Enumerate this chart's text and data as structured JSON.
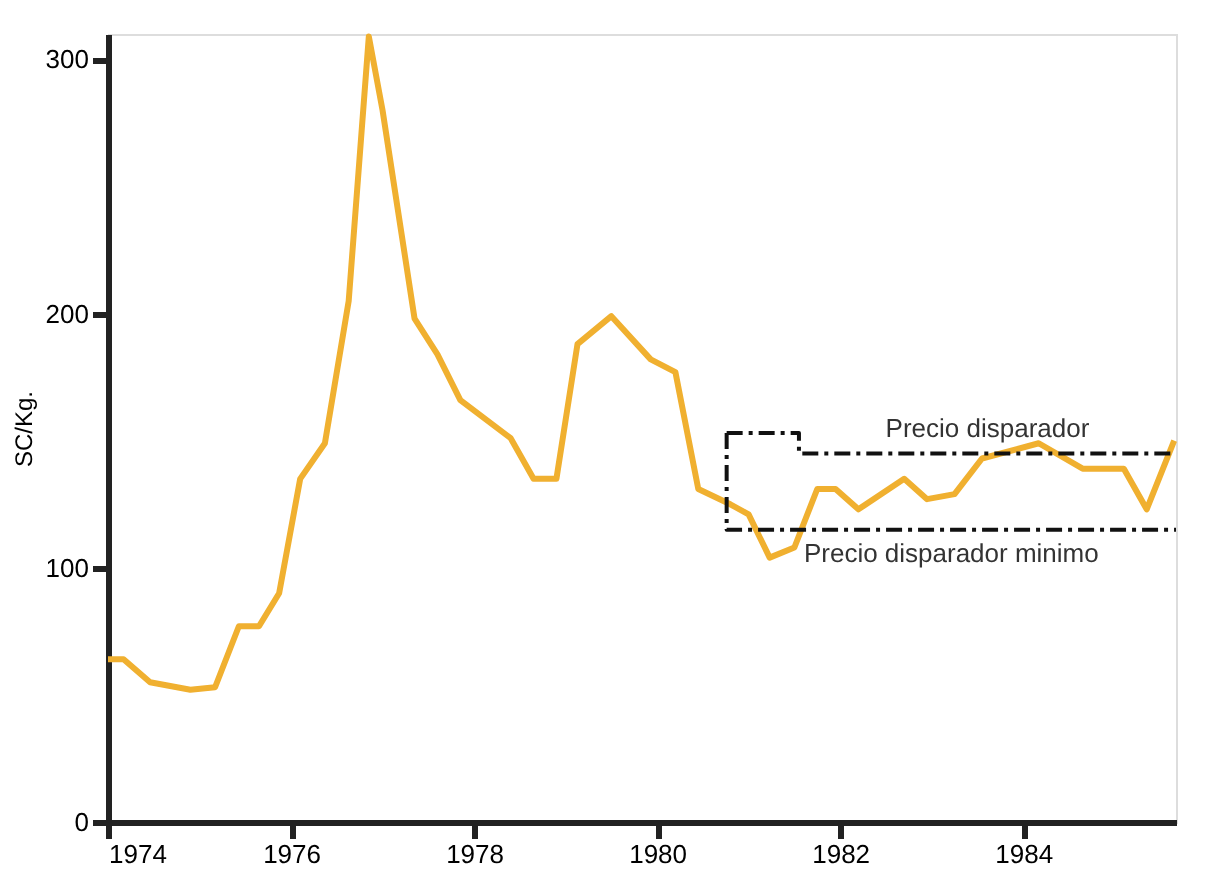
{
  "chart_data": {
    "type": "line",
    "ylabel": "SC/Kg.",
    "xlim": [
      1974,
      1985.67
    ],
    "xticks": [
      1974,
      1976,
      1978,
      1980,
      1982,
      1984
    ],
    "ylim": [
      0,
      310
    ],
    "yticks": [
      0,
      100,
      200,
      300
    ],
    "grid": false,
    "series": [
      {
        "color": "#f0b030",
        "x": [
          1974.0,
          1974.17,
          1974.46,
          1974.9,
          1975.17,
          1975.43,
          1975.65,
          1975.87,
          1976.1,
          1976.37,
          1976.63,
          1976.85,
          1977.0,
          1977.35,
          1977.6,
          1977.85,
          1978.4,
          1978.65,
          1978.9,
          1979.13,
          1979.5,
          1979.93,
          1980.2,
          1980.45,
          1980.8,
          1981.0,
          1981.23,
          1981.5,
          1981.75,
          1981.95,
          1982.2,
          1982.7,
          1982.95,
          1983.25,
          1983.55,
          1984.17,
          1984.65,
          1985.1,
          1985.35,
          1985.65
        ],
        "values": [
          64,
          64,
          55,
          52,
          53,
          77,
          77,
          90,
          135,
          149,
          205,
          309,
          280,
          198,
          184,
          166,
          151,
          135,
          135,
          188,
          199,
          182,
          177,
          131,
          125,
          121,
          104,
          108,
          131,
          131,
          123,
          135,
          127,
          129,
          143,
          149,
          139,
          139,
          123,
          150
        ]
      },
      {
        "name": "Precio disparador",
        "color": "#111111",
        "line_style": "dashed",
        "x": [
          1980.76,
          1981.55,
          1981.55,
          1985.67
        ],
        "values": [
          153,
          153,
          145,
          145
        ]
      },
      {
        "name": "Precio disparador  minimo",
        "color": "#111111",
        "line_style": "dashed",
        "x": [
          1980.76,
          1980.76,
          1985.67
        ],
        "values": [
          153,
          115,
          115
        ]
      }
    ]
  }
}
